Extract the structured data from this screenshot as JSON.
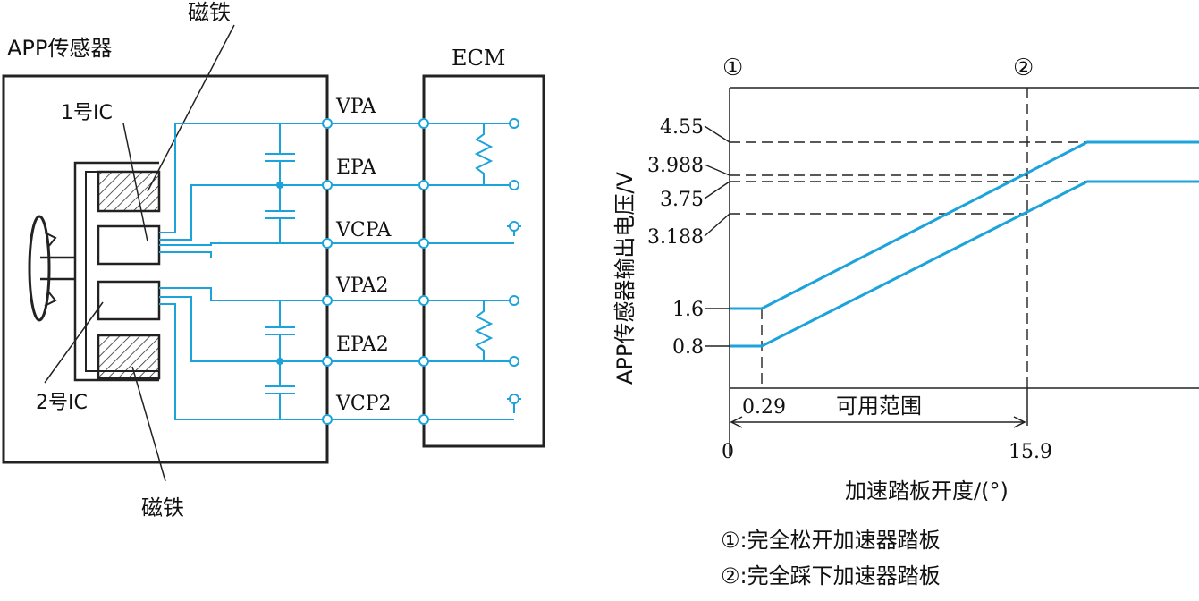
{
  "left_diagram": {
    "app_sensor_label": "APP传感器",
    "ecm_label": "ECM",
    "magnet_top_label": "磁铁",
    "magnet_bottom_label": "磁铁",
    "ic1_label": "1号IC",
    "ic2_label": "2号IC",
    "terminals": [
      "VPA",
      "EPA",
      "VCPA",
      "VPA2",
      "EPA2",
      "VCP2"
    ]
  },
  "chart": {
    "marker1": "①",
    "marker2": "②",
    "ylabel": "APP传感器输出电压/V",
    "xlabel": "加速踏板开度/(°)",
    "range_label": "可用范围",
    "y_ticks": [
      "4.55",
      "3.988",
      "3.75",
      "3.188",
      "1.6",
      "0.8"
    ],
    "x_ticks": [
      "0",
      "0.29",
      "15.9"
    ],
    "legend": [
      "①:完全松开加速器踏板",
      "②:完全踩下加速器踏板"
    ]
  },
  "chart_data": {
    "type": "line",
    "xlabel": "加速踏板开度/(°)",
    "ylabel": "APP传感器输出电压/V",
    "x_ticks": [
      0,
      0.29,
      15.9
    ],
    "y_ticks": [
      0.8,
      1.6,
      3.188,
      3.75,
      3.988,
      4.55
    ],
    "series": [
      {
        "x": [
          0,
          0.29,
          15.9,
          18.5,
          20
        ],
        "y": [
          1.6,
          1.6,
          3.988,
          4.55,
          4.55
        ]
      },
      {
        "x": [
          0,
          0.29,
          15.9,
          18.5,
          20
        ],
        "y": [
          0.8,
          0.8,
          3.188,
          3.75,
          3.75
        ]
      }
    ],
    "annotations": [
      "可用范围",
      "①",
      "②"
    ]
  },
  "colors": {
    "wire": "#1ca3dc",
    "line": "#222222"
  }
}
